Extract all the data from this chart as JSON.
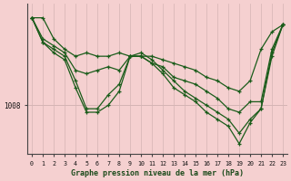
{
  "title": "Graphe pression niveau de la mer (hPa)",
  "bg_color": "#f5d0d0",
  "plot_bg_color": "#f5d0d0",
  "grid_color": "#d4b4b4",
  "line_color": "#1a5c1a",
  "ytick_value": 1008,
  "ymin": 1001.0,
  "ymax": 1022.5,
  "xmin": 0,
  "xmax": 23,
  "series": [
    [
      1020.5,
      1020.5,
      1017.5,
      1016.0,
      1015.0,
      1015.5,
      1015.0,
      1015.0,
      1015.5,
      1015.0,
      1015.0,
      1015.0,
      1014.5,
      1014.0,
      1013.5,
      1013.0,
      1012.0,
      1011.5,
      1010.5,
      1010.0,
      1011.5,
      1016.0,
      1018.5,
      1019.5
    ],
    [
      1020.5,
      1017.5,
      1016.5,
      1015.5,
      1013.0,
      1012.5,
      1013.0,
      1013.5,
      1013.0,
      1015.0,
      1015.0,
      1014.0,
      1013.5,
      1012.0,
      1011.5,
      1011.0,
      1010.0,
      1009.0,
      1007.5,
      1007.0,
      1008.5,
      1008.5,
      1016.0,
      1019.5
    ],
    [
      1020.5,
      1017.0,
      1016.0,
      1015.0,
      1011.5,
      1007.5,
      1007.5,
      1009.5,
      1011.0,
      1015.0,
      1015.5,
      1014.5,
      1013.0,
      1011.5,
      1010.0,
      1009.0,
      1008.0,
      1007.0,
      1006.0,
      1004.0,
      1006.0,
      1007.5,
      1015.5,
      1019.5
    ],
    [
      1020.5,
      1017.0,
      1015.5,
      1014.5,
      1010.5,
      1007.0,
      1007.0,
      1008.0,
      1010.0,
      1015.0,
      1015.0,
      1014.0,
      1012.5,
      1010.5,
      1009.5,
      1008.5,
      1007.0,
      1006.0,
      1005.0,
      1002.5,
      1005.5,
      1007.5,
      1015.0,
      1019.5
    ]
  ]
}
